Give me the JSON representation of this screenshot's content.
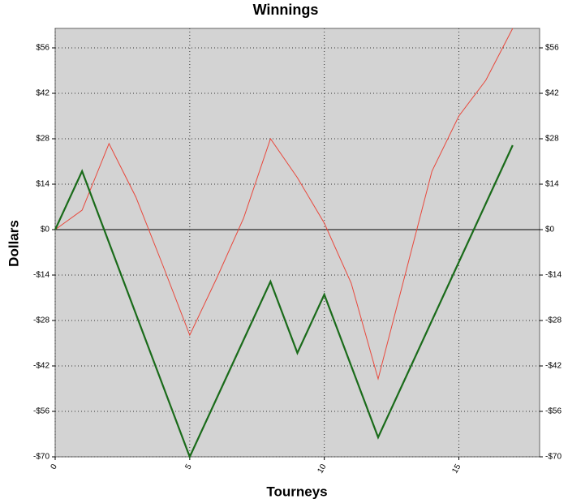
{
  "chart_data": {
    "type": "line",
    "title": "Winnings",
    "x_label": "Tourneys",
    "y_label": "Dollars",
    "x": [
      0,
      1,
      2,
      3,
      4,
      5,
      6,
      7,
      8,
      9,
      10,
      11,
      12,
      13,
      14,
      15,
      16,
      17
    ],
    "series": [
      {
        "color": "#e8483c",
        "width": 1,
        "values": [
          0,
          6,
          26.5,
          10,
          -11,
          -32.5,
          -15,
          3.5,
          28,
          16,
          2,
          -16.5,
          -46,
          -14,
          18,
          35,
          46,
          62
        ]
      },
      {
        "color": "#1a6b1a",
        "width": 2.2,
        "values": [
          0,
          18,
          -4,
          -26,
          -48,
          -70,
          -52,
          -34,
          -16,
          -38,
          -20,
          -42,
          -64,
          -46,
          -28,
          -10,
          8,
          26
        ]
      }
    ],
    "xlim": [
      0,
      18
    ],
    "xticks": [
      0,
      5,
      10,
      15
    ],
    "ylim": [
      -70,
      62
    ],
    "yticks": [
      {
        "value": -70,
        "label": "-$70"
      },
      {
        "value": -56,
        "label": "-$56"
      },
      {
        "value": -42,
        "label": "-$42"
      },
      {
        "value": -28,
        "label": "-$28"
      },
      {
        "value": -14,
        "label": "-$14"
      },
      {
        "value": 0,
        "label": "$0"
      },
      {
        "value": 14,
        "label": "$14"
      },
      {
        "value": 28,
        "label": "$28"
      },
      {
        "value": 42,
        "label": "$42"
      },
      {
        "value": 56,
        "label": "$56"
      }
    ],
    "grid": true
  }
}
